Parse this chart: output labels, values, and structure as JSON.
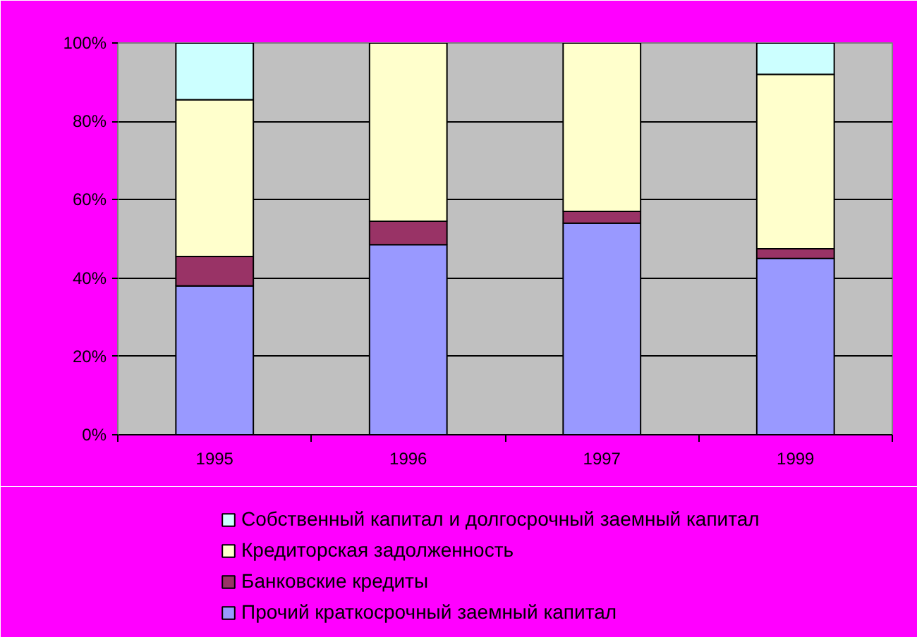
{
  "chart_data": {
    "type": "bar",
    "stacked": true,
    "categories": [
      "1995",
      "1996",
      "1997",
      "1999"
    ],
    "series": [
      {
        "name": "Прочий краткосрочный заемный капитал",
        "color": "#9999ff",
        "values": [
          38,
          48.5,
          54,
          45
        ]
      },
      {
        "name": "Банковские кредиты",
        "color": "#993366",
        "values": [
          7.5,
          6,
          3,
          2.5
        ]
      },
      {
        "name": "Кредиторская задолженность",
        "color": "#ffffcc",
        "values": [
          40,
          45.5,
          43,
          44.5
        ]
      },
      {
        "name": "Собственный капитал и долгосрочный заемный капитал",
        "color": "#ccffff",
        "values": [
          14.5,
          0,
          0,
          8
        ]
      }
    ],
    "ylim": [
      0,
      100
    ],
    "yticks": [
      {
        "value": 0,
        "label": "0%"
      },
      {
        "value": 20,
        "label": "20%"
      },
      {
        "value": 40,
        "label": "40%"
      },
      {
        "value": 60,
        "label": "60%"
      },
      {
        "value": 80,
        "label": "80%"
      },
      {
        "value": 100,
        "label": "100%"
      }
    ],
    "grid": "y",
    "legend": "bottom"
  }
}
